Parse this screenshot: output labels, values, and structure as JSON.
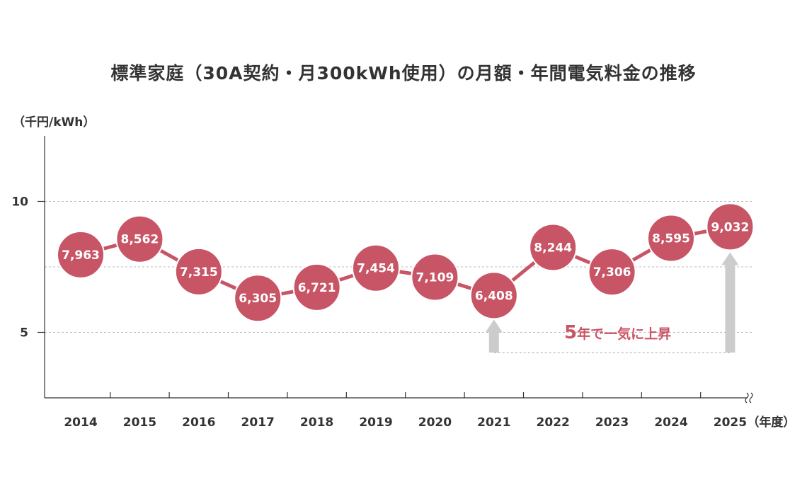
{
  "chart_data": {
    "type": "line",
    "title": "標準家庭（30A契約・月300kWh使用）の月額・年間電気料金の推移",
    "ylabel": "（千円/kWh）",
    "xlabel_suffix": "（年度）",
    "categories": [
      "2014",
      "2015",
      "2016",
      "2017",
      "2018",
      "2019",
      "2020",
      "2021",
      "2022",
      "2023",
      "2024",
      "2025"
    ],
    "series": [
      {
        "values": [
          7.963,
          8.562,
          7.315,
          6.305,
          6.721,
          7.454,
          7.109,
          6.408,
          8.244,
          7.306,
          8.595,
          9.032
        ],
        "labels": [
          "7,963",
          "8,562",
          "7,315",
          "6,305",
          "6,721",
          "7,454",
          "7,109",
          "6,408",
          "8,244",
          "7,306",
          "8,595",
          "9,032"
        ]
      }
    ],
    "ylim": [
      2.5,
      12.5
    ],
    "yticks": [
      5,
      10
    ],
    "ytick_labels": [
      "5",
      "10"
    ],
    "gridlines": [
      5,
      7.5,
      10
    ],
    "grid": true,
    "axis_break": true,
    "annotation": {
      "number": "5",
      "text": "年で一気に上昇",
      "from": "2021",
      "to": "2025"
    },
    "colors": {
      "marker": "#c85565",
      "line": "#c85565",
      "arrow": "#cccccc",
      "axis": "#333333",
      "grid": "#bbbbbb"
    }
  }
}
